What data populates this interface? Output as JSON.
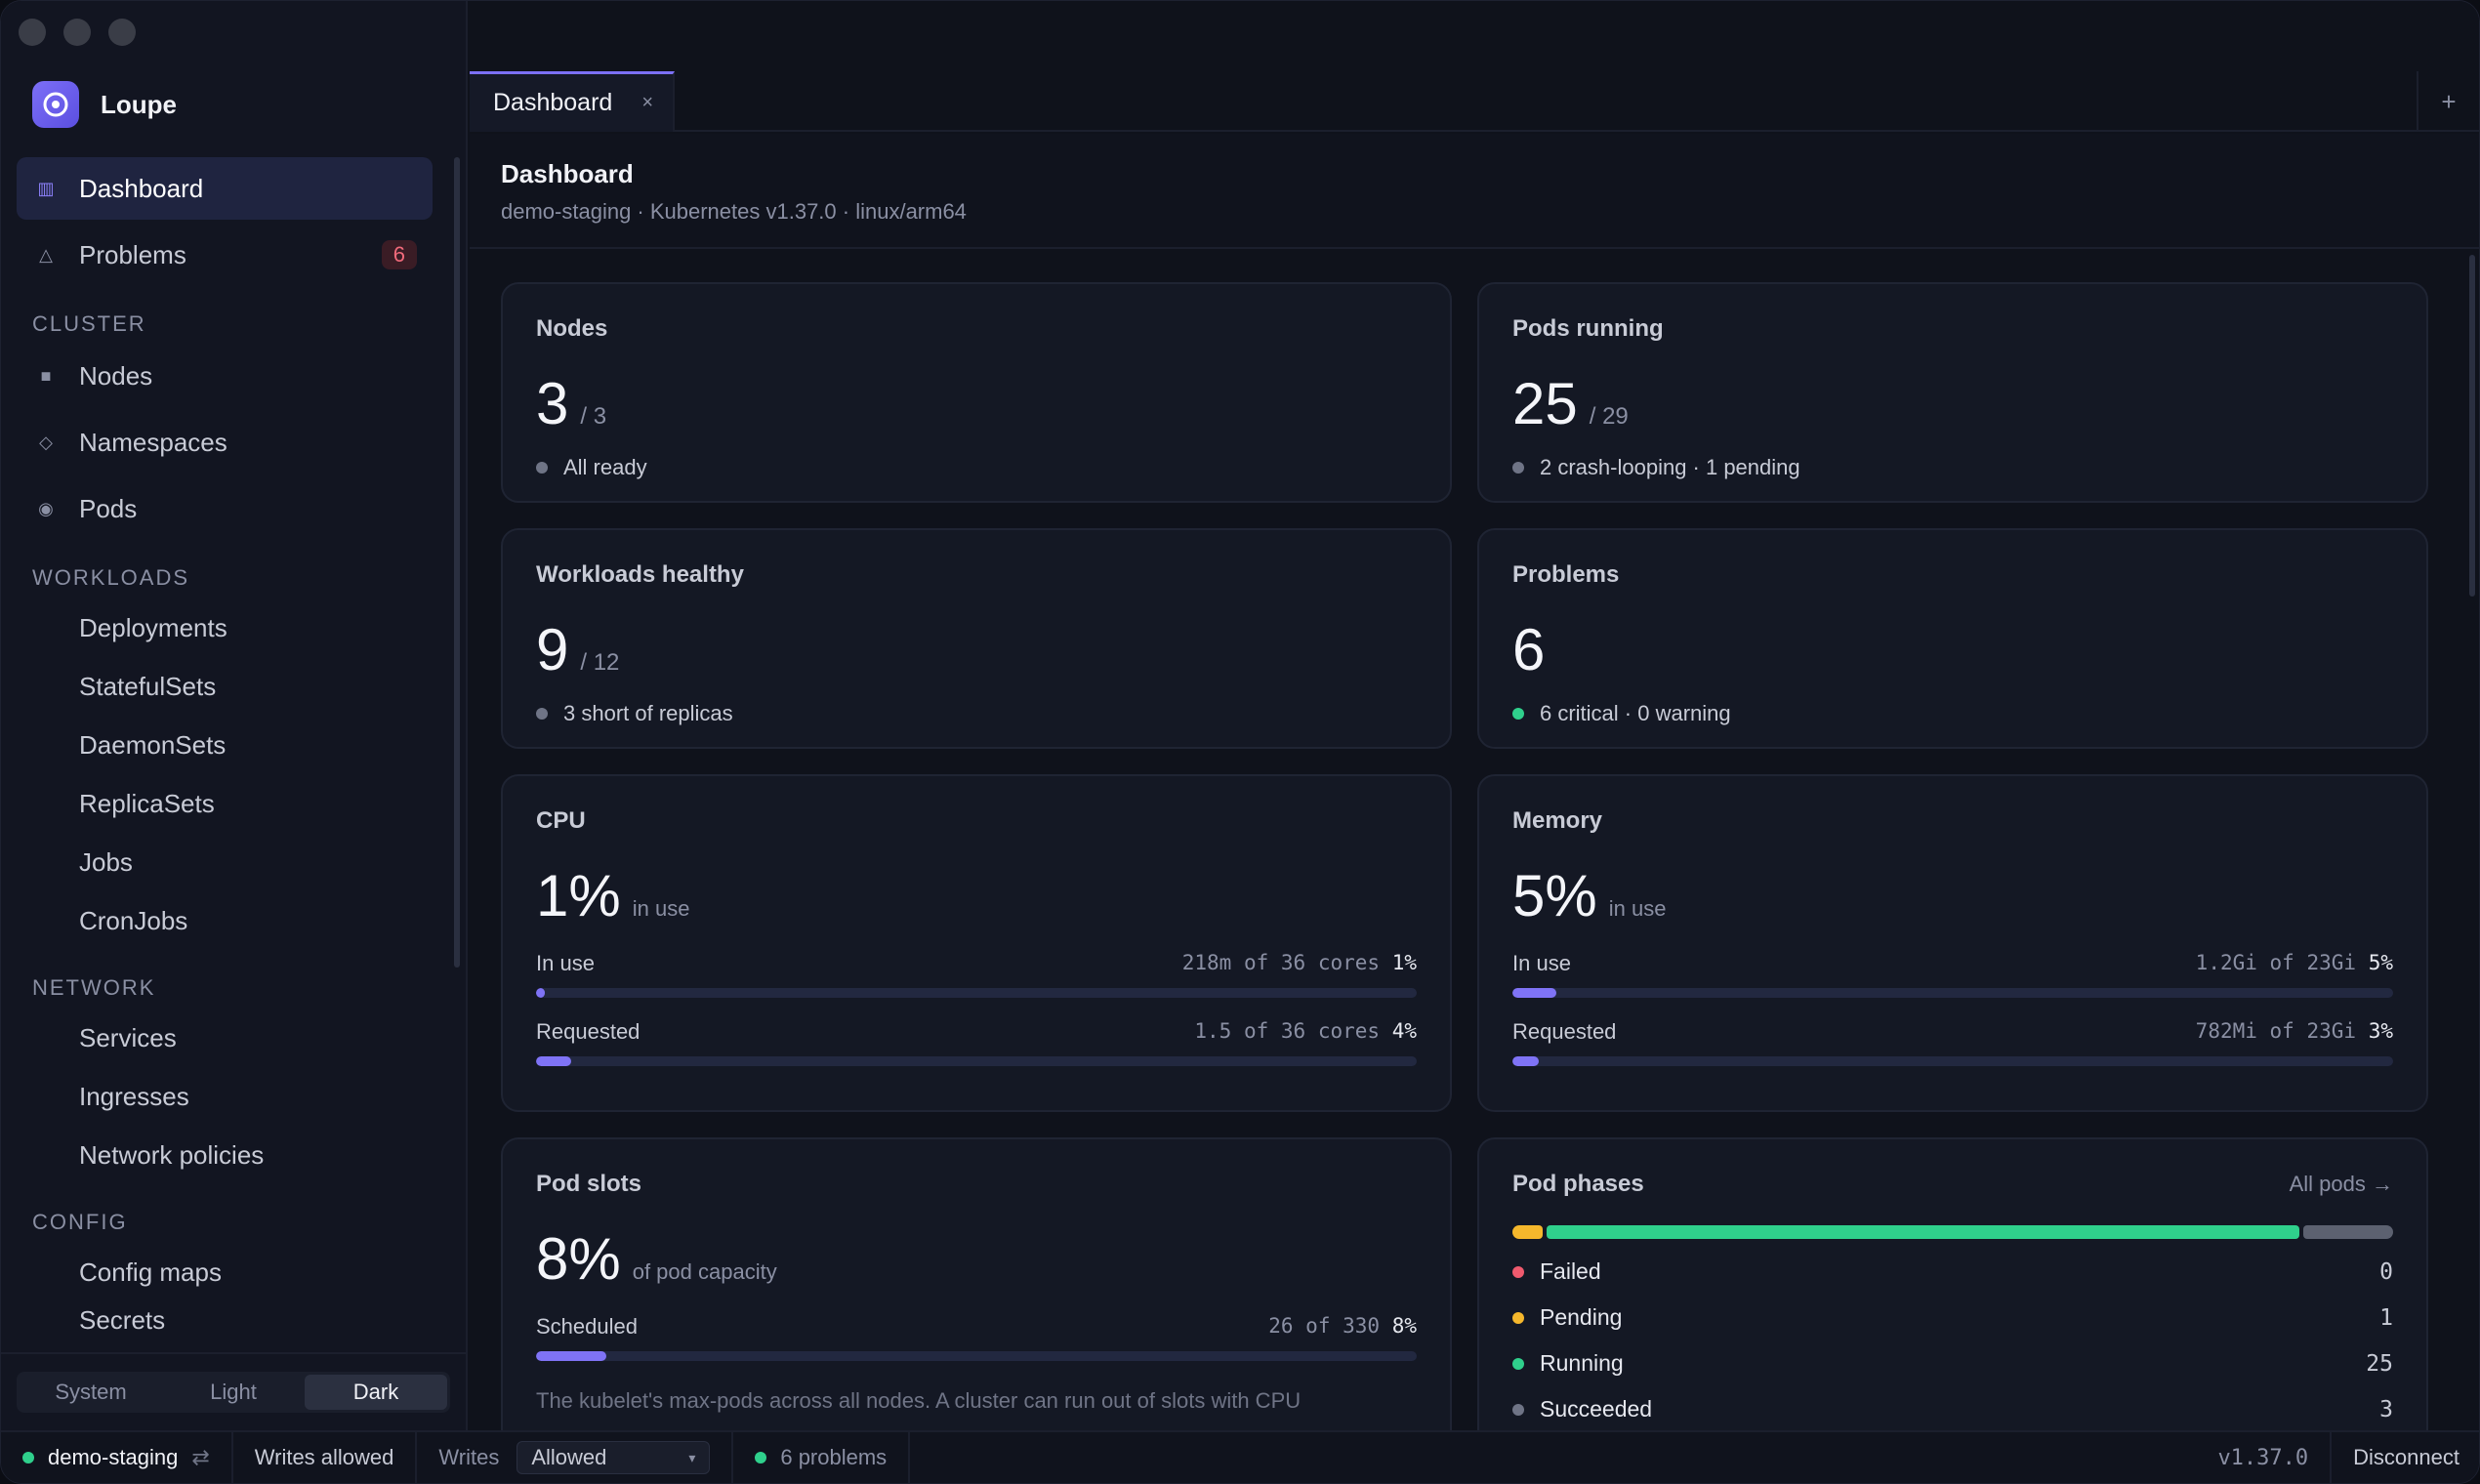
{
  "app": {
    "name": "Loupe"
  },
  "sidebar": {
    "top_items": [
      {
        "label": "Dashboard"
      },
      {
        "label": "Problems",
        "badge": "6"
      }
    ],
    "sections": {
      "cluster": {
        "label": "CLUSTER",
        "items": [
          "Nodes",
          "Namespaces",
          "Pods"
        ]
      },
      "workloads": {
        "label": "WORKLOADS",
        "items": [
          "Deployments",
          "StatefulSets",
          "DaemonSets",
          "ReplicaSets",
          "Jobs",
          "CronJobs"
        ]
      },
      "network": {
        "label": "NETWORK",
        "items": [
          "Services",
          "Ingresses",
          "Network policies"
        ]
      },
      "config": {
        "label": "CONFIG",
        "items": [
          "Config maps",
          "Secrets"
        ]
      }
    },
    "theme": {
      "options": [
        "System",
        "Light",
        "Dark"
      ],
      "selected": "Dark"
    }
  },
  "tabs": [
    {
      "label": "Dashboard",
      "close": "×"
    }
  ],
  "tab_add": "+",
  "header": {
    "title": "Dashboard",
    "subtitle": "demo-staging · Kubernetes v1.37.0 · linux/arm64"
  },
  "cards": {
    "nodes": {
      "title": "Nodes",
      "value": "3",
      "denom": "/ 3",
      "status": "All ready"
    },
    "pods": {
      "title": "Pods running",
      "value": "25",
      "denom": "/ 29",
      "status": "2 crash-looping · 1 pending"
    },
    "workloads": {
      "title": "Workloads healthy",
      "value": "9",
      "denom": "/ 12",
      "status": "3 short of replicas"
    },
    "problems": {
      "title": "Problems",
      "value": "6",
      "status": "6 critical · 0 warning"
    },
    "cpu": {
      "title": "CPU",
      "value": "1%",
      "suffix": "in use",
      "in_use": {
        "label": "In use",
        "detail": "218m of 36 cores",
        "pct": "1%",
        "fraction": 0.01
      },
      "requested": {
        "label": "Requested",
        "detail": "1.5 of 36 cores",
        "pct": "4%",
        "fraction": 0.04
      }
    },
    "memory": {
      "title": "Memory",
      "value": "5%",
      "suffix": "in use",
      "in_use": {
        "label": "In use",
        "detail": "1.2Gi of 23Gi",
        "pct": "5%",
        "fraction": 0.05
      },
      "requested": {
        "label": "Requested",
        "detail": "782Mi of 23Gi",
        "pct": "3%",
        "fraction": 0.03
      }
    },
    "pod_slots": {
      "title": "Pod slots",
      "value": "8%",
      "suffix": "of pod capacity",
      "scheduled": {
        "label": "Scheduled",
        "detail": "26 of 330",
        "pct": "8%",
        "fraction": 0.08
      },
      "note": "The kubelet's max-pods across all nodes. A cluster can run out of slots with CPU"
    },
    "pod_phases": {
      "title": "Pod phases",
      "link": "All pods →",
      "phases": [
        {
          "label": "Failed",
          "count": "0",
          "value": 0,
          "color": "#f05a6e"
        },
        {
          "label": "Pending",
          "count": "1",
          "value": 1,
          "color": "#f5b72c"
        },
        {
          "label": "Running",
          "count": "25",
          "value": 25,
          "color": "#2fd08c"
        },
        {
          "label": "Succeeded",
          "count": "3",
          "value": 3,
          "color": "#5c6170"
        }
      ]
    }
  },
  "statusbar": {
    "context": "demo-staging",
    "writes_status": "Writes allowed",
    "writes_label": "Writes",
    "writes_select": "Allowed",
    "problems": "6 problems",
    "version": "v1.37.0",
    "disconnect": "Disconnect"
  },
  "colors": {
    "accent": "#7f73f6",
    "ok": "#2fd08c",
    "danger": "#f05a6e",
    "warn": "#f5b72c"
  }
}
